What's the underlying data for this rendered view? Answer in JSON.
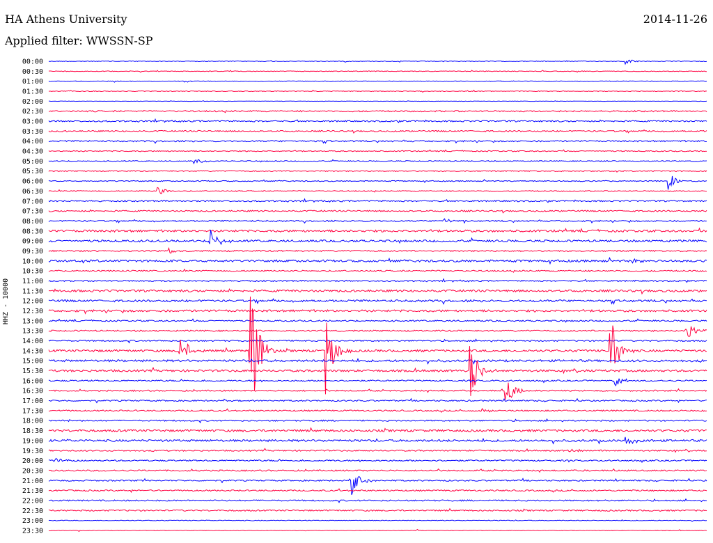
{
  "header": {
    "station": "HA Athens University",
    "filter": "Applied filter: WWSSN-SP",
    "date": "2014-11-26"
  },
  "chart_data": {
    "type": "helicorder",
    "ylabel": "HHZ - 10000",
    "colors": [
      "#0000ff",
      "#ff0040"
    ],
    "rows": [
      "00:00",
      "00:30",
      "01:00",
      "01:30",
      "02:00",
      "02:30",
      "03:00",
      "03:30",
      "04:00",
      "04:30",
      "05:00",
      "05:30",
      "06:00",
      "06:30",
      "07:00",
      "07:30",
      "08:00",
      "08:30",
      "09:00",
      "09:30",
      "10:00",
      "10:30",
      "11:00",
      "11:30",
      "12:00",
      "12:30",
      "13:00",
      "13:30",
      "14:00",
      "14:30",
      "15:00",
      "15:30",
      "16:00",
      "16:30",
      "17:00",
      "17:30",
      "18:00",
      "18:30",
      "19:00",
      "19:30",
      "20:00",
      "20:30",
      "21:00",
      "21:30",
      "22:00",
      "22:30",
      "23:00",
      "23:30"
    ],
    "noise": [
      1,
      1,
      1,
      1,
      0.5,
      2,
      2,
      2,
      2,
      1.5,
      1.5,
      1.5,
      1.5,
      1.5,
      2,
      2,
      2,
      3,
      3,
      2,
      3,
      2,
      2,
      3,
      3,
      3,
      2,
      2,
      2,
      3,
      3,
      3,
      2,
      2,
      2,
      2,
      2,
      3,
      3,
      2,
      2,
      2,
      2,
      2,
      2,
      2,
      1,
      1
    ],
    "events": [
      {
        "row": 0,
        "x": 0.875,
        "amp": 5
      },
      {
        "row": 0,
        "x": 0.21,
        "amp": 1
      },
      {
        "row": 10,
        "x": 0.22,
        "amp": 4,
        "dur": 0.05
      },
      {
        "row": 12,
        "x": 0.94,
        "amp": 14
      },
      {
        "row": 13,
        "x": 0.165,
        "amp": 7
      },
      {
        "row": 16,
        "x": 0.6,
        "amp": 4
      },
      {
        "row": 18,
        "x": 0.245,
        "amp": 20
      },
      {
        "row": 19,
        "x": 0.182,
        "amp": 5
      },
      {
        "row": 20,
        "x": 0.885,
        "amp": 4
      },
      {
        "row": 29,
        "x": 0.198,
        "amp": 30
      },
      {
        "row": 29,
        "x": 0.305,
        "amp": 130
      },
      {
        "row": 29,
        "x": 0.42,
        "amp": 70
      },
      {
        "row": 29,
        "x": 0.852,
        "amp": 55
      },
      {
        "row": 27,
        "x": 0.967,
        "amp": 25
      },
      {
        "row": 31,
        "x": 0.64,
        "amp": 40
      },
      {
        "row": 32,
        "x": 0.86,
        "amp": 12
      },
      {
        "row": 33,
        "x": 0.693,
        "amp": 25
      },
      {
        "row": 35,
        "x": 0.658,
        "amp": 3
      },
      {
        "row": 36,
        "x": 0.03,
        "amp": 4
      },
      {
        "row": 38,
        "x": 0.875,
        "amp": 10
      },
      {
        "row": 39,
        "x": 0.79,
        "amp": 4
      },
      {
        "row": 40,
        "x": 0.008,
        "amp": 5
      },
      {
        "row": 42,
        "x": 0.46,
        "amp": 22
      }
    ]
  }
}
